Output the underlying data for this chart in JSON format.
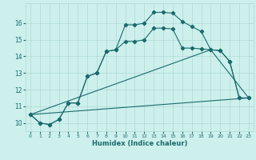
{
  "xlabel": "Humidex (Indice chaleur)",
  "bg_color": "#cdf0ed",
  "grid_color": "#aed8d4",
  "line_color": "#1a6b6b",
  "xlim": [
    -0.5,
    23.5
  ],
  "ylim": [
    9.5,
    17.2
  ],
  "yticks": [
    10,
    11,
    12,
    13,
    14,
    15,
    16
  ],
  "xticks": [
    0,
    1,
    2,
    3,
    4,
    5,
    6,
    7,
    8,
    9,
    10,
    11,
    12,
    13,
    14,
    15,
    16,
    17,
    18,
    19,
    20,
    21,
    22,
    23
  ],
  "line_main_x": [
    0,
    1,
    2,
    3,
    4,
    5,
    6,
    7,
    8,
    9,
    10,
    11,
    12,
    13,
    14,
    15,
    16,
    17,
    18,
    19,
    20,
    21,
    22,
    23
  ],
  "line_main_y": [
    10.5,
    10.0,
    9.9,
    10.2,
    11.2,
    11.2,
    12.8,
    13.0,
    14.3,
    14.4,
    15.9,
    15.9,
    16.0,
    16.65,
    16.65,
    16.6,
    16.1,
    15.8,
    15.5,
    14.4,
    14.35,
    13.7,
    11.5,
    11.5
  ],
  "line2_x": [
    0,
    1,
    2,
    3,
    4,
    5,
    6,
    7,
    8,
    9,
    10,
    11,
    12,
    13,
    14,
    15,
    16,
    17,
    18,
    19,
    20,
    21,
    22,
    23
  ],
  "line2_y": [
    10.5,
    10.0,
    9.9,
    10.2,
    11.2,
    11.2,
    12.8,
    13.0,
    14.3,
    14.4,
    14.9,
    14.9,
    15.0,
    15.7,
    15.7,
    15.65,
    14.5,
    14.5,
    14.45,
    14.4,
    14.35,
    13.7,
    11.5,
    11.5
  ],
  "line3_x": [
    0,
    23
  ],
  "line3_y": [
    10.5,
    11.5
  ],
  "line4_x": [
    0,
    19,
    23
  ],
  "line4_y": [
    10.5,
    14.4,
    11.5
  ]
}
